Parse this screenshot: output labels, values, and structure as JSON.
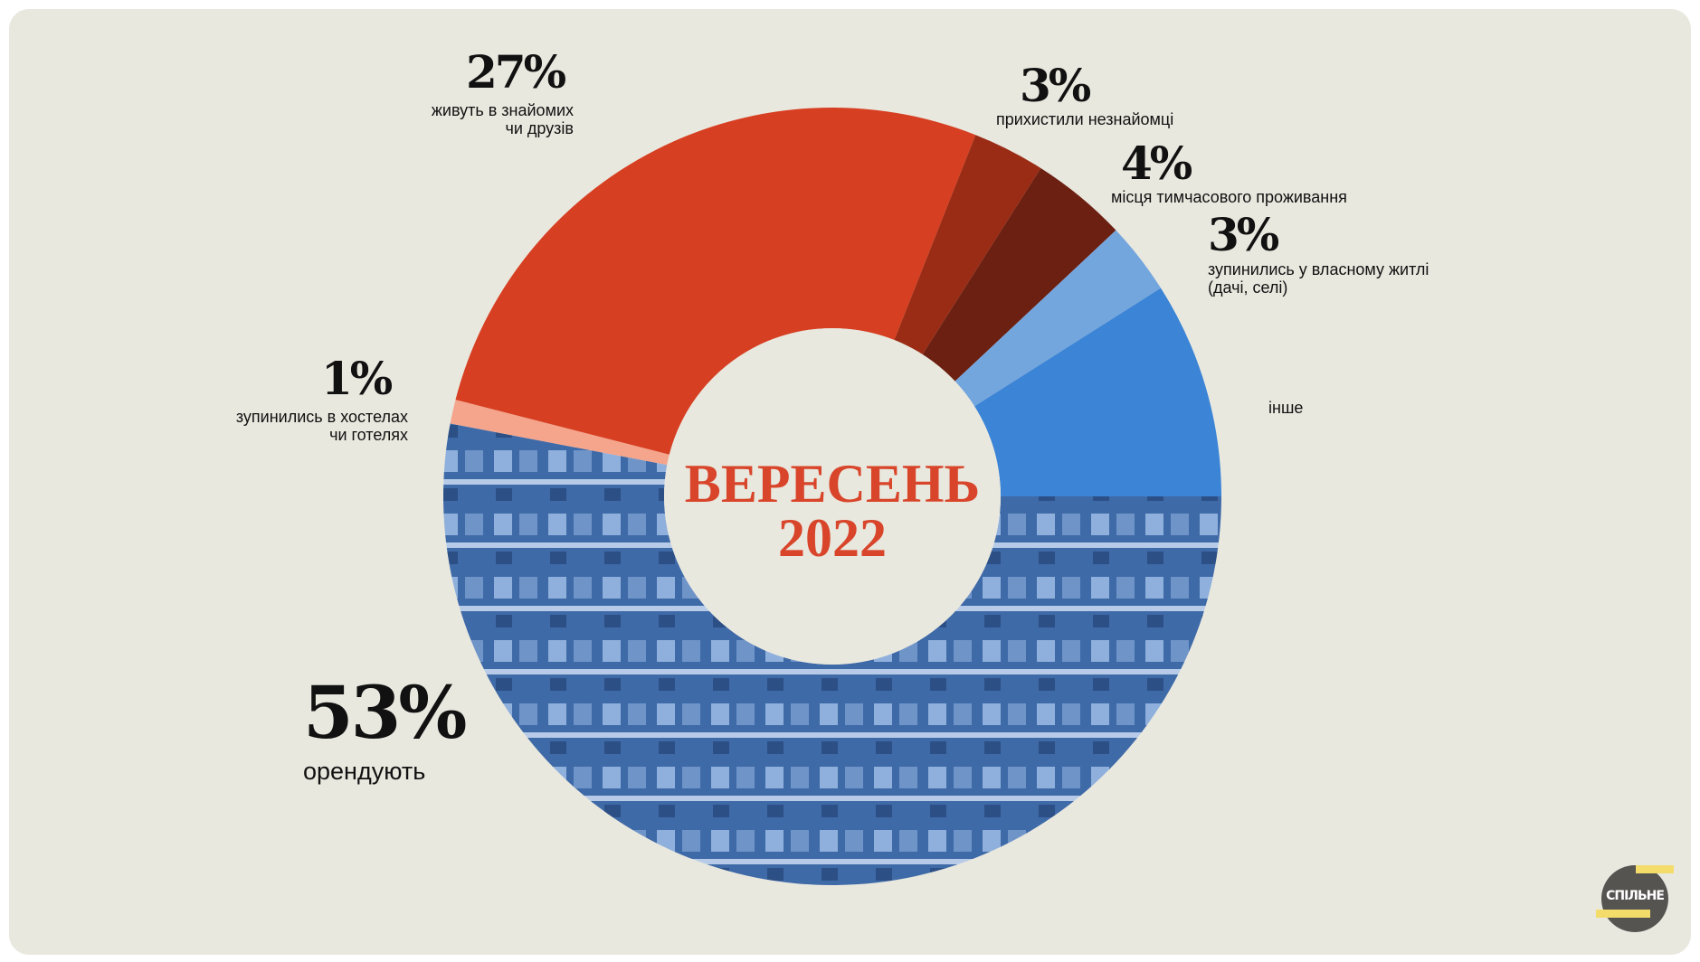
{
  "chart_data": {
    "type": "pie",
    "variant": "donut",
    "title": "ВЕРЕСЕНЬ",
    "subtitle": "2022",
    "slices": [
      {
        "value": 53,
        "value_label": "53%",
        "label": "орендують",
        "color": "#4a76b8"
      },
      {
        "value": 1,
        "value_label": "1%",
        "label_lines": [
          "зупинились в хостелах",
          "чи готелях"
        ],
        "color": "#f4a58c"
      },
      {
        "value": 27,
        "value_label": "27%",
        "label_lines": [
          "живуть в знайомих",
          "чи друзів"
        ],
        "color": "#d73f22"
      },
      {
        "value": 3,
        "value_label": "3%",
        "label": "прихистили незнайомці",
        "color": "#9a2c15"
      },
      {
        "value": 4,
        "value_label": "4%",
        "label": "місця тимчасового проживання",
        "color": "#6b2012"
      },
      {
        "value": 3,
        "value_label": "3%",
        "label_lines": [
          "зупинились у власному житлі",
          "(дачі, селі)"
        ],
        "color": "#74a6de"
      },
      {
        "value": 9,
        "label": "інше",
        "color": "#3b84d6"
      }
    ]
  },
  "logo": {
    "text": "СПІЛЬНЕ"
  }
}
